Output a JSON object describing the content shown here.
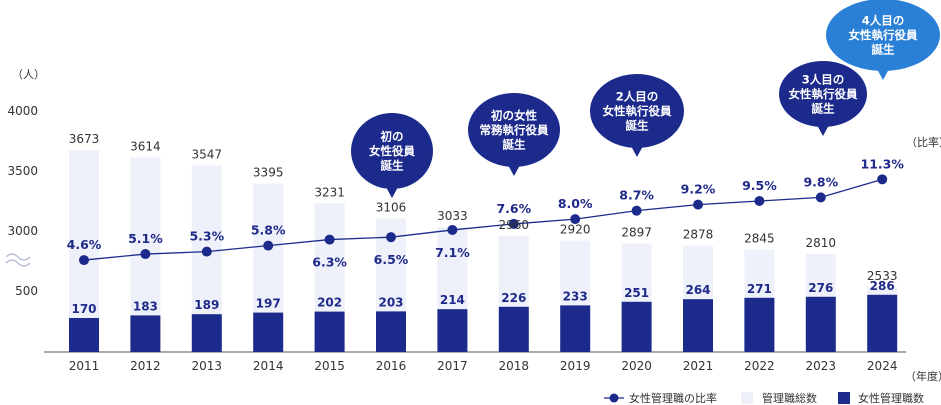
{
  "chart_data": {
    "type": "bar",
    "categories": [
      "2011",
      "2012",
      "2013",
      "2014",
      "2015",
      "2016",
      "2017",
      "2018",
      "2019",
      "2020",
      "2021",
      "2022",
      "2023",
      "2024"
    ],
    "series": [
      {
        "name": "管理職総数",
        "kind": "bar",
        "values": [
          3673,
          3614,
          3547,
          3395,
          3231,
          3106,
          3033,
          2960,
          2920,
          2897,
          2878,
          2845,
          2810,
          2533
        ],
        "color": "#eef1f9"
      },
      {
        "name": "女性管理職数",
        "kind": "bar",
        "values": [
          170,
          183,
          189,
          197,
          202,
          203,
          214,
          226,
          233,
          251,
          264,
          271,
          276,
          286
        ],
        "color": "#1c2a8c"
      },
      {
        "name": "女性管理職の比率",
        "kind": "line",
        "values": [
          4.6,
          5.1,
          5.3,
          5.8,
          6.3,
          6.5,
          7.1,
          7.6,
          8.0,
          8.7,
          9.2,
          9.5,
          9.8,
          11.3
        ],
        "labels": [
          "4.6%",
          "5.1%",
          "5.3%",
          "5.8%",
          "6.3%",
          "6.5%",
          "7.1%",
          "7.6%",
          "8.0%",
          "8.7%",
          "9.2%",
          "9.5%",
          "9.8%",
          "11.3%"
        ],
        "color": "#1c2a8c"
      }
    ],
    "yticks": [
      "4000",
      "3500",
      "3000",
      "500"
    ],
    "y_axis_broken": true,
    "ylabel": "（人）",
    "right_label": "（比率）",
    "xlabel": "（年度）",
    "annotations": [
      {
        "year": "2016",
        "text": [
          "初の",
          "女性役員",
          "誕生"
        ]
      },
      {
        "year": "2018",
        "text": [
          "初の女性",
          "常務執行役員",
          "誕生"
        ]
      },
      {
        "year": "2020",
        "text": [
          "2人目の",
          "女性執行役員",
          "誕生"
        ]
      },
      {
        "year": "2023",
        "text": [
          "3人目の",
          "女性執行役員",
          "誕生"
        ]
      },
      {
        "year": "2024",
        "text": [
          "4人目の",
          "女性執行役員",
          "誕生"
        ]
      }
    ],
    "legend": [
      "女性管理職の比率",
      "管理職総数",
      "女性管理職数"
    ],
    "legend_position": "bottom-right",
    "grid": false
  }
}
